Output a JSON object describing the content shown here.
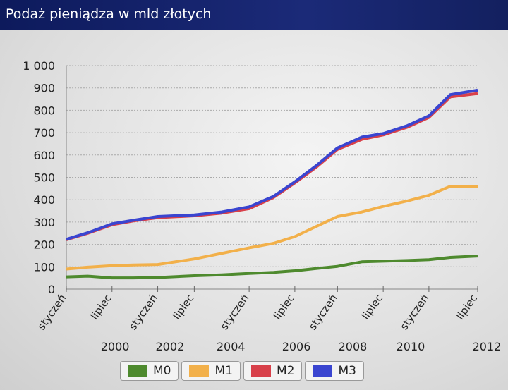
{
  "header": {
    "title": "Podaż pieniądza w mld złotych"
  },
  "chart_data": {
    "type": "line",
    "title": "Podaż pieniądza w mld złotych",
    "xlabel": "",
    "ylabel": "",
    "ylim": [
      0,
      1000
    ],
    "xlim": [
      1999,
      2012.5
    ],
    "yticks": [
      {
        "v": 0,
        "label": "0"
      },
      {
        "v": 100,
        "label": "100"
      },
      {
        "v": 200,
        "label": "200"
      },
      {
        "v": 300,
        "label": "300"
      },
      {
        "v": 400,
        "label": "400"
      },
      {
        "v": 500,
        "label": "500"
      },
      {
        "v": 600,
        "label": "600"
      },
      {
        "v": 700,
        "label": "700"
      },
      {
        "v": 800,
        "label": "800"
      },
      {
        "v": 900,
        "label": "900"
      },
      {
        "v": 1000,
        "label": "1 000"
      }
    ],
    "xticks": [
      {
        "v": 1999,
        "label": "styczeń"
      },
      {
        "v": 2000.5,
        "label": "lipiec"
      },
      {
        "v": 2002,
        "label": "styczeń"
      },
      {
        "v": 2003.2,
        "label": "lipiec"
      },
      {
        "v": 2005,
        "label": "styczeń"
      },
      {
        "v": 2006.5,
        "label": "lipiec"
      },
      {
        "v": 2007.9,
        "label": "styczeń"
      },
      {
        "v": 2009.4,
        "label": "lipiec"
      },
      {
        "v": 2010.9,
        "label": "styczeń"
      },
      {
        "v": 2012.5,
        "label": "lipiec"
      }
    ],
    "year_labels": [
      {
        "v": 2000.6,
        "label": "2000"
      },
      {
        "v": 2002.4,
        "label": "2002"
      },
      {
        "v": 2004.4,
        "label": "2004"
      },
      {
        "v": 2006.55,
        "label": "2006"
      },
      {
        "v": 2008.4,
        "label": "2008"
      },
      {
        "v": 2010.3,
        "label": "2010"
      },
      {
        "v": 2012.8,
        "label": "2012"
      }
    ],
    "x": [
      1999,
      1999.7,
      2000.5,
      2001.2,
      2002,
      2003.2,
      2004.1,
      2005,
      2005.8,
      2006.5,
      2007.2,
      2007.9,
      2008.7,
      2009.4,
      2010.2,
      2010.9,
      2011.6,
      2012.5
    ],
    "grid": true,
    "legend": "bottom",
    "series": [
      {
        "name": "M0",
        "color": "#4e8a2e",
        "values": [
          55,
          58,
          50,
          50,
          52,
          60,
          64,
          70,
          75,
          82,
          92,
          102,
          122,
          125,
          128,
          132,
          142,
          148
        ]
      },
      {
        "name": "M1",
        "color": "#f2b04a",
        "values": [
          90,
          98,
          105,
          108,
          110,
          135,
          160,
          185,
          205,
          235,
          280,
          325,
          345,
          370,
          395,
          420,
          460,
          460
        ]
      },
      {
        "name": "M2",
        "color": "#d8404a",
        "values": [
          221,
          250,
          288,
          305,
          320,
          328,
          340,
          360,
          410,
          475,
          545,
          625,
          670,
          690,
          725,
          768,
          860,
          875
        ]
      },
      {
        "name": "M3",
        "color": "#3a45d0",
        "values": [
          223,
          252,
          292,
          308,
          325,
          332,
          345,
          368,
          415,
          480,
          552,
          632,
          680,
          696,
          732,
          775,
          870,
          890
        ]
      }
    ]
  }
}
